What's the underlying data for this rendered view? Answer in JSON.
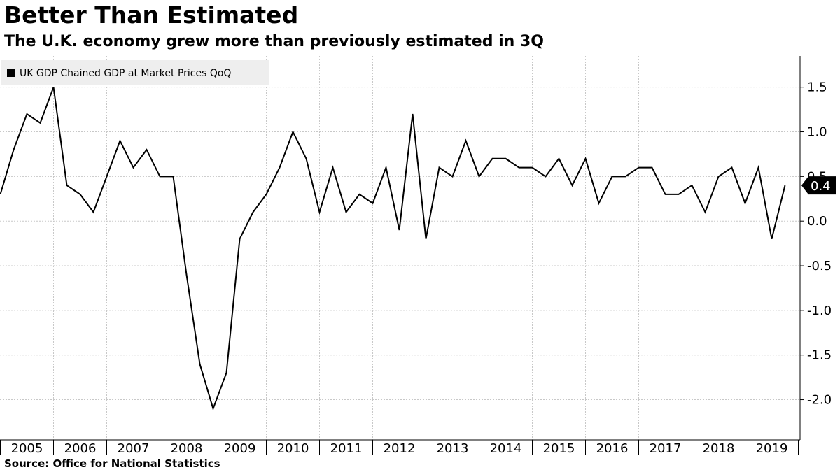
{
  "header": {
    "title": "Better Than Estimated",
    "subtitle": "The U.K. economy grew more than previously estimated in 3Q"
  },
  "footer": {
    "source": "Source: Office for National Statistics"
  },
  "colors": {
    "line": "#000000",
    "grid": "#c8c8c8",
    "legend_bg": "#eeeeee",
    "last_value_bg": "#000000",
    "last_value_text": "#ffffff"
  },
  "chart_data": {
    "type": "line",
    "title": "Better Than Estimated",
    "subtitle": "The U.K. economy grew more than previously estimated in 3Q",
    "xlabel": "",
    "ylabel": "",
    "legend": "top-left",
    "grid": true,
    "y_axis_side": "right",
    "ylim": [
      -2.45,
      1.85
    ],
    "yticks": [
      1.5,
      1.0,
      0.5,
      0.0,
      -0.5,
      -1.0,
      -1.5,
      -2.0
    ],
    "ytick_labels": [
      "1.5",
      "1.0",
      "0.5",
      "0.0",
      "-0.5",
      "-1.0",
      "-1.5",
      "-2.0"
    ],
    "categories": [
      "2005",
      "2006",
      "2007",
      "2008",
      "2009",
      "2010",
      "2011",
      "2012",
      "2013",
      "2014",
      "2015",
      "2016",
      "2017",
      "2018",
      "2019"
    ],
    "last_value_label": "0.4",
    "series": [
      {
        "name": "UK GDP Chained GDP at Market Prices QoQ",
        "x": [
          "2004Q4",
          "2005Q1",
          "2005Q2",
          "2005Q3",
          "2005Q4",
          "2006Q1",
          "2006Q2",
          "2006Q3",
          "2006Q4",
          "2007Q1",
          "2007Q2",
          "2007Q3",
          "2007Q4",
          "2008Q1",
          "2008Q2",
          "2008Q3",
          "2008Q4",
          "2009Q1",
          "2009Q2",
          "2009Q3",
          "2009Q4",
          "2010Q1",
          "2010Q2",
          "2010Q3",
          "2010Q4",
          "2011Q1",
          "2011Q2",
          "2011Q3",
          "2011Q4",
          "2012Q1",
          "2012Q2",
          "2012Q3",
          "2012Q4",
          "2013Q1",
          "2013Q2",
          "2013Q3",
          "2013Q4",
          "2014Q1",
          "2014Q2",
          "2014Q3",
          "2014Q4",
          "2015Q1",
          "2015Q2",
          "2015Q3",
          "2015Q4",
          "2016Q1",
          "2016Q2",
          "2016Q3",
          "2016Q4",
          "2017Q1",
          "2017Q2",
          "2017Q3",
          "2017Q4",
          "2018Q1",
          "2018Q2",
          "2018Q3",
          "2018Q4",
          "2019Q1",
          "2019Q2",
          "2019Q3"
        ],
        "values": [
          0.3,
          0.8,
          1.2,
          1.1,
          1.5,
          0.4,
          0.3,
          0.1,
          0.5,
          0.9,
          0.6,
          0.8,
          0.5,
          0.5,
          -0.6,
          -1.6,
          -2.1,
          -1.7,
          -0.2,
          0.1,
          0.3,
          0.6,
          1.0,
          0.7,
          0.1,
          0.6,
          0.1,
          0.3,
          0.2,
          0.6,
          -0.1,
          1.2,
          -0.2,
          0.6,
          0.5,
          0.9,
          0.5,
          0.7,
          0.7,
          0.6,
          0.6,
          0.5,
          0.7,
          0.4,
          0.7,
          0.2,
          0.5,
          0.5,
          0.6,
          0.6,
          0.3,
          0.3,
          0.4,
          0.1,
          0.5,
          0.6,
          0.2,
          0.6,
          -0.2,
          0.4
        ]
      }
    ]
  }
}
